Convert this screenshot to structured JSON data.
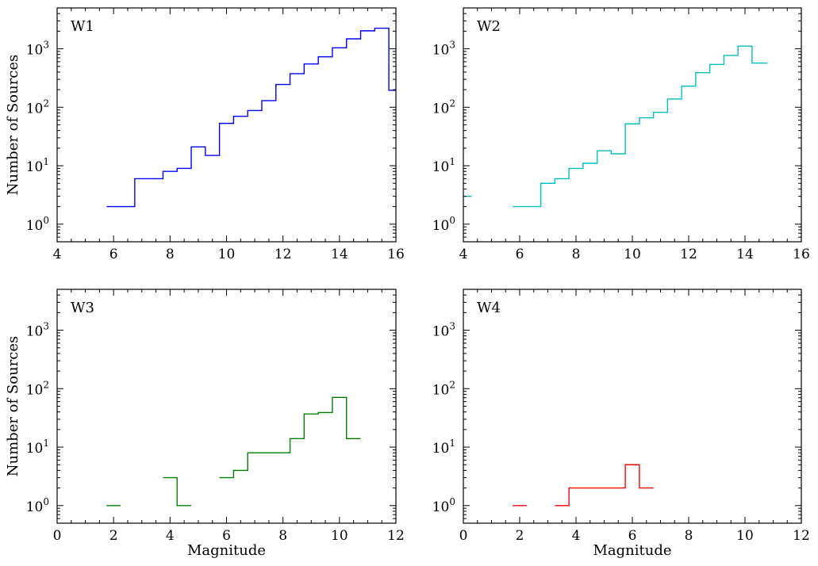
{
  "chart_data": [
    {
      "type": "step",
      "panel_label": "W1",
      "color": "#0000ff",
      "xlim": [
        4,
        16
      ],
      "ylim": [
        0.5,
        5000
      ],
      "yscale": "log",
      "xticks": [
        4,
        6,
        8,
        10,
        12,
        14,
        16
      ],
      "xlabel": "",
      "ylabel": "Number of Sources",
      "segments": [
        {
          "edges": [
            5.75,
            6.75,
            7.75,
            8.25,
            8.75,
            9.25,
            9.75,
            10.25,
            10.75,
            11.25,
            11.75,
            12.25,
            12.75,
            13.25,
            13.75,
            14.25,
            14.75,
            15.25,
            15.75,
            16.0
          ],
          "values": [
            2,
            6,
            8,
            9,
            21,
            15,
            53,
            70,
            88,
            130,
            245,
            375,
            550,
            730,
            1040,
            1480,
            2030,
            2250,
            195
          ]
        }
      ]
    },
    {
      "type": "step",
      "panel_label": "W2",
      "color": "#00bfbf",
      "xlim": [
        4,
        16
      ],
      "ylim": [
        0.5,
        5000
      ],
      "yscale": "log",
      "xticks": [
        4,
        6,
        8,
        10,
        12,
        14,
        16
      ],
      "xlabel": "",
      "ylabel": "",
      "segments": [
        {
          "edges": [
            4.0,
            4.3
          ],
          "values": [
            3
          ]
        },
        {
          "edges": [
            5.75,
            6.75,
            7.25,
            7.75,
            8.25,
            8.75,
            9.25,
            9.75,
            10.25,
            10.75,
            11.25,
            11.75,
            12.25,
            12.75,
            13.25,
            13.75,
            14.25,
            14.8
          ],
          "values": [
            2,
            5,
            6,
            9,
            11,
            18,
            16,
            52,
            66,
            82,
            138,
            230,
            390,
            540,
            770,
            1110,
            570
          ]
        }
      ]
    },
    {
      "type": "step",
      "panel_label": "W3",
      "color": "#008000",
      "xlim": [
        0,
        12
      ],
      "ylim": [
        0.5,
        5000
      ],
      "yscale": "log",
      "xticks": [
        0,
        2,
        4,
        6,
        8,
        10,
        12
      ],
      "xlabel": "Magnitude",
      "ylabel": "Number of Sources",
      "segments": [
        {
          "edges": [
            1.75,
            2.25
          ],
          "values": [
            1
          ]
        },
        {
          "edges": [
            3.75,
            4.25,
            4.75
          ],
          "values": [
            3,
            1
          ]
        },
        {
          "edges": [
            5.75,
            6.25,
            6.75,
            8.25,
            8.75,
            9.25,
            9.75,
            10.25,
            10.75
          ],
          "values": [
            3,
            4,
            8,
            14,
            37,
            39,
            71,
            14
          ]
        }
      ]
    },
    {
      "type": "step",
      "panel_label": "W4",
      "color": "#ff0000",
      "xlim": [
        0,
        12
      ],
      "ylim": [
        0.5,
        5000
      ],
      "yscale": "log",
      "xticks": [
        0,
        2,
        4,
        6,
        8,
        10,
        12
      ],
      "xlabel": "Magnitude",
      "ylabel": "",
      "segments": [
        {
          "edges": [
            1.75,
            2.25
          ],
          "values": [
            1
          ]
        },
        {
          "edges": [
            3.25,
            3.75,
            5.75,
            6.25,
            6.75
          ],
          "values": [
            1,
            2,
            5,
            2
          ]
        }
      ]
    }
  ],
  "yticks": [
    {
      "value": 1,
      "label_base": "10",
      "label_exp": "0"
    },
    {
      "value": 10,
      "label_base": "10",
      "label_exp": "1"
    },
    {
      "value": 100,
      "label_base": "10",
      "label_exp": "2"
    },
    {
      "value": 1000,
      "label_base": "10",
      "label_exp": "3"
    }
  ]
}
